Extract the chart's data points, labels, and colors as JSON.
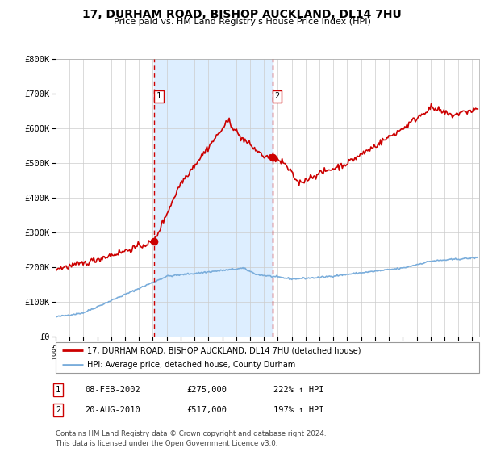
{
  "title": "17, DURHAM ROAD, BISHOP AUCKLAND, DL14 7HU",
  "subtitle": "Price paid vs. HM Land Registry's House Price Index (HPI)",
  "legend_line1": "17, DURHAM ROAD, BISHOP AUCKLAND, DL14 7HU (detached house)",
  "legend_line2": "HPI: Average price, detached house, County Durham",
  "transaction1_date": "08-FEB-2002",
  "transaction1_price": 275000,
  "transaction1_hpi": "222% ↑ HPI",
  "transaction2_date": "20-AUG-2010",
  "transaction2_price": 517000,
  "transaction2_hpi": "197% ↑ HPI",
  "footer": "Contains HM Land Registry data © Crown copyright and database right 2024.\nThis data is licensed under the Open Government Licence v3.0.",
  "red_color": "#cc0000",
  "blue_color": "#7aaddb",
  "bg_shading_color": "#ddeeff",
  "grid_color": "#cccccc",
  "ylim": [
    0,
    800000
  ],
  "yticks": [
    0,
    100000,
    200000,
    300000,
    400000,
    500000,
    600000,
    700000,
    800000
  ],
  "ytick_labels": [
    "£0",
    "£100K",
    "£200K",
    "£300K",
    "£400K",
    "£500K",
    "£600K",
    "£700K",
    "£800K"
  ],
  "transaction1_x": 2002.1,
  "transaction2_x": 2010.6,
  "xmin": 1995.0,
  "xmax": 2025.5
}
